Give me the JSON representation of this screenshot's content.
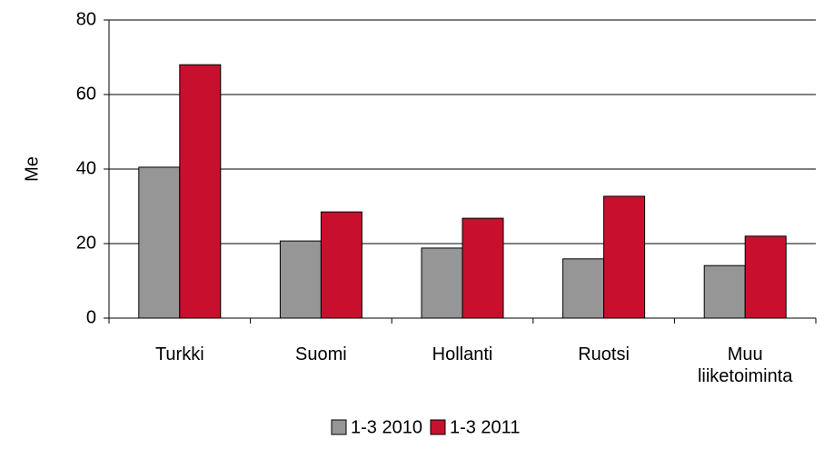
{
  "chart_data": {
    "type": "bar",
    "y_label": "Me",
    "categories": [
      "Turkki",
      "Suomi",
      "Hollanti",
      "Ruotsi",
      "Muu liiketoiminta"
    ],
    "series": [
      {
        "name": "1-3 2010",
        "color": "#969696",
        "values": [
          40.5,
          20.7,
          18.8,
          15.9,
          14.1
        ]
      },
      {
        "name": "1-3 2011",
        "color": "#c8102e",
        "values": [
          68,
          28.5,
          26.8,
          32.7,
          22
        ]
      }
    ],
    "ylim": [
      0,
      80
    ],
    "yticks": [
      0,
      20,
      40,
      60,
      80
    ],
    "grid": true,
    "legend": "bottom"
  }
}
